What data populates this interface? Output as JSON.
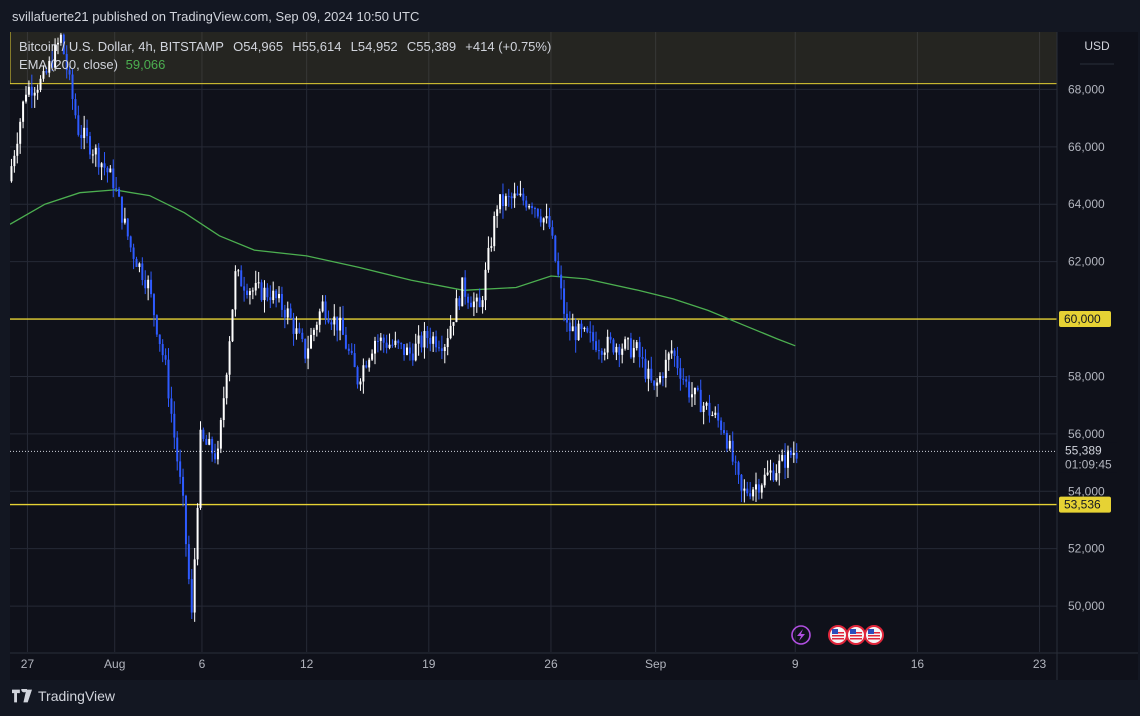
{
  "publisher_line": "svillafuerte21 published on TradingView.com, Sep 09, 2024 10:50 UTC",
  "legend": {
    "symbol": "Bitcoin / U.S. Dollar, 4h, BITSTAMP",
    "open": "O54,965",
    "high": "H55,614",
    "low": "L54,952",
    "close": "C55,389",
    "change": "+414 (+0.75%)",
    "ema_label": "EMA (200, close)",
    "ema_value": "59,066"
  },
  "currency": "USD",
  "footer_brand": "TradingView",
  "colors": {
    "up": "#ffffff",
    "down": "#2e5bff",
    "ema": "#4caf50",
    "level": "#e6d234",
    "background": "#0f111a"
  },
  "icons": [
    "lightning-event-icon",
    "us-flag-event-icon",
    "us-flag-event-icon",
    "us-flag-event-icon"
  ],
  "chart_data": {
    "type": "candlestick",
    "timeframe": "4h",
    "x_ticks": [
      "27",
      "Aug",
      "6",
      "12",
      "19",
      "26",
      "Sep",
      "9",
      "16",
      "23"
    ],
    "y_ticks": [
      "50,000",
      "52,000",
      "54,000",
      "56,000",
      "58,000",
      "60,000",
      "62,000",
      "64,000",
      "66,000",
      "68,000"
    ],
    "ylim": [
      48400,
      70000
    ],
    "x_range": [
      "2024-07-26",
      "2024-09-24"
    ],
    "horizontal_levels": [
      {
        "label": "60,000",
        "value": 60000
      },
      {
        "label": "53,536",
        "value": 53536
      }
    ],
    "resistance_zone": [
      68200,
      70500
    ],
    "last_price": {
      "label": "55,389",
      "value": 55389,
      "countdown": "01:09:45"
    },
    "ema_200": [
      [
        "2024-07-26",
        63300
      ],
      [
        "2024-07-28",
        64000
      ],
      [
        "2024-07-30",
        64400
      ],
      [
        "2024-08-01",
        64500
      ],
      [
        "2024-08-03",
        64300
      ],
      [
        "2024-08-05",
        63700
      ],
      [
        "2024-08-07",
        62900
      ],
      [
        "2024-08-09",
        62400
      ],
      [
        "2024-08-12",
        62200
      ],
      [
        "2024-08-15",
        61800
      ],
      [
        "2024-08-18",
        61350
      ],
      [
        "2024-08-21",
        61000
      ],
      [
        "2024-08-24",
        61100
      ],
      [
        "2024-08-26",
        61500
      ],
      [
        "2024-08-28",
        61400
      ],
      [
        "2024-08-31",
        61000
      ],
      [
        "2024-09-02",
        60700
      ],
      [
        "2024-09-04",
        60300
      ],
      [
        "2024-09-06",
        59800
      ],
      [
        "2024-09-08",
        59300
      ],
      [
        "2024-09-09",
        59066
      ]
    ],
    "price_path": [
      [
        "2024-07-26",
        64800
      ],
      [
        "2024-07-27",
        68000
      ],
      [
        "2024-07-28",
        68300
      ],
      [
        "2024-07-29",
        69800
      ],
      [
        "2024-07-30",
        66600
      ],
      [
        "2024-07-31",
        65800
      ],
      [
        "2024-08-01",
        64800
      ],
      [
        "2024-08-02",
        62500
      ],
      [
        "2024-08-03",
        61200
      ],
      [
        "2024-08-04",
        58300
      ],
      [
        "2024-08-05",
        53500
      ],
      [
        "2024-08-05T12",
        49600
      ],
      [
        "2024-08-06",
        55800
      ],
      [
        "2024-08-07",
        55200
      ],
      [
        "2024-08-08",
        61500
      ],
      [
        "2024-08-09",
        61000
      ],
      [
        "2024-08-10",
        60900
      ],
      [
        "2024-08-11",
        60200
      ],
      [
        "2024-08-12",
        58800
      ],
      [
        "2024-08-13",
        60500
      ],
      [
        "2024-08-14",
        59700
      ],
      [
        "2024-08-15",
        57900
      ],
      [
        "2024-08-16",
        59300
      ],
      [
        "2024-08-17",
        59100
      ],
      [
        "2024-08-18",
        58800
      ],
      [
        "2024-08-19",
        59400
      ],
      [
        "2024-08-20",
        59200
      ],
      [
        "2024-08-21",
        61100
      ],
      [
        "2024-08-22",
        60300
      ],
      [
        "2024-08-23",
        64000
      ],
      [
        "2024-08-24",
        64200
      ],
      [
        "2024-08-25",
        64100
      ],
      [
        "2024-08-26",
        63200
      ],
      [
        "2024-08-27",
        59700
      ],
      [
        "2024-08-28",
        59400
      ],
      [
        "2024-08-29",
        59100
      ],
      [
        "2024-08-30",
        59100
      ],
      [
        "2024-08-31",
        58900
      ],
      [
        "2024-09-01",
        57500
      ],
      [
        "2024-09-02",
        58900
      ],
      [
        "2024-09-03",
        57500
      ],
      [
        "2024-09-04",
        56900
      ],
      [
        "2024-09-05",
        56200
      ],
      [
        "2024-09-06",
        53900
      ],
      [
        "2024-09-07",
        54300
      ],
      [
        "2024-09-08",
        54800
      ],
      [
        "2024-09-09",
        55389
      ]
    ]
  }
}
